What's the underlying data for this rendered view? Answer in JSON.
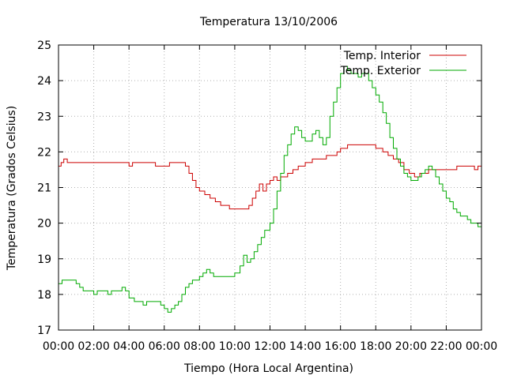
{
  "chart_data": {
    "type": "line",
    "title": "Temperatura 13/10/2006",
    "xlabel": "Tiempo (Hora Local Argentina)",
    "ylabel": "Temperatura (Grados Celsius)",
    "xlim": [
      0,
      24
    ],
    "ylim": [
      17,
      25
    ],
    "grid": true,
    "legend_position": "top-right",
    "x_ticks": [
      {
        "v": 0,
        "label": "00:00"
      },
      {
        "v": 2,
        "label": "02:00"
      },
      {
        "v": 4,
        "label": "04:00"
      },
      {
        "v": 6,
        "label": "06:00"
      },
      {
        "v": 8,
        "label": "08:00"
      },
      {
        "v": 10,
        "label": "10:00"
      },
      {
        "v": 12,
        "label": "12:00"
      },
      {
        "v": 14,
        "label": "14:00"
      },
      {
        "v": 16,
        "label": "16:00"
      },
      {
        "v": 18,
        "label": "18:00"
      },
      {
        "v": 20,
        "label": "20:00"
      },
      {
        "v": 22,
        "label": "22:00"
      },
      {
        "v": 24,
        "label": "00:00"
      }
    ],
    "y_ticks": [
      {
        "v": 17,
        "label": "17"
      },
      {
        "v": 18,
        "label": "18"
      },
      {
        "v": 19,
        "label": "19"
      },
      {
        "v": 20,
        "label": "20"
      },
      {
        "v": 21,
        "label": "21"
      },
      {
        "v": 22,
        "label": "22"
      },
      {
        "v": 23,
        "label": "23"
      },
      {
        "v": 24,
        "label": "24"
      },
      {
        "v": 25,
        "label": "25"
      }
    ],
    "series": [
      {
        "name": "Temp. Interior",
        "color": "#cc0000",
        "points": [
          [
            0,
            21.6
          ],
          [
            0.15,
            21.7
          ],
          [
            0.3,
            21.8
          ],
          [
            0.5,
            21.7
          ],
          [
            1.5,
            21.7
          ],
          [
            2.5,
            21.7
          ],
          [
            3.5,
            21.7
          ],
          [
            3.9,
            21.7
          ],
          [
            4.0,
            21.6
          ],
          [
            4.2,
            21.7
          ],
          [
            4.5,
            21.7
          ],
          [
            5.0,
            21.7
          ],
          [
            5.4,
            21.7
          ],
          [
            5.5,
            21.6
          ],
          [
            6.2,
            21.6
          ],
          [
            6.3,
            21.7
          ],
          [
            7.0,
            21.7
          ],
          [
            7.2,
            21.6
          ],
          [
            7.4,
            21.4
          ],
          [
            7.6,
            21.2
          ],
          [
            7.8,
            21.0
          ],
          [
            8.0,
            20.9
          ],
          [
            8.3,
            20.8
          ],
          [
            8.6,
            20.7
          ],
          [
            8.9,
            20.6
          ],
          [
            9.2,
            20.5
          ],
          [
            9.5,
            20.5
          ],
          [
            9.7,
            20.4
          ],
          [
            10.5,
            20.4
          ],
          [
            10.8,
            20.5
          ],
          [
            11.0,
            20.7
          ],
          [
            11.2,
            20.9
          ],
          [
            11.4,
            21.1
          ],
          [
            11.6,
            20.9
          ],
          [
            11.8,
            21.1
          ],
          [
            12.0,
            21.2
          ],
          [
            12.2,
            21.3
          ],
          [
            12.4,
            21.2
          ],
          [
            12.6,
            21.3
          ],
          [
            12.8,
            21.3
          ],
          [
            13.0,
            21.4
          ],
          [
            13.3,
            21.5
          ],
          [
            13.6,
            21.6
          ],
          [
            14.0,
            21.7
          ],
          [
            14.4,
            21.8
          ],
          [
            14.8,
            21.8
          ],
          [
            15.2,
            21.9
          ],
          [
            15.5,
            21.9
          ],
          [
            15.8,
            22.0
          ],
          [
            16.0,
            22.1
          ],
          [
            16.4,
            22.2
          ],
          [
            17.0,
            22.2
          ],
          [
            17.6,
            22.2
          ],
          [
            18.0,
            22.1
          ],
          [
            18.4,
            22.0
          ],
          [
            18.7,
            21.9
          ],
          [
            19.0,
            21.8
          ],
          [
            19.3,
            21.7
          ],
          [
            19.6,
            21.5
          ],
          [
            19.9,
            21.4
          ],
          [
            20.2,
            21.3
          ],
          [
            20.5,
            21.4
          ],
          [
            20.8,
            21.4
          ],
          [
            21.0,
            21.5
          ],
          [
            21.5,
            21.5
          ],
          [
            22.0,
            21.5
          ],
          [
            22.4,
            21.5
          ],
          [
            22.6,
            21.6
          ],
          [
            23.0,
            21.6
          ],
          [
            23.4,
            21.6
          ],
          [
            23.6,
            21.5
          ],
          [
            23.8,
            21.6
          ],
          [
            24.0,
            21.6
          ]
        ]
      },
      {
        "name": "Temp. Exterior",
        "color": "#00aa00",
        "points": [
          [
            0,
            18.3
          ],
          [
            0.2,
            18.4
          ],
          [
            0.5,
            18.4
          ],
          [
            0.8,
            18.4
          ],
          [
            1.0,
            18.3
          ],
          [
            1.2,
            18.2
          ],
          [
            1.4,
            18.1
          ],
          [
            1.8,
            18.1
          ],
          [
            2.0,
            18.0
          ],
          [
            2.2,
            18.1
          ],
          [
            2.6,
            18.1
          ],
          [
            2.8,
            18.0
          ],
          [
            3.0,
            18.1
          ],
          [
            3.4,
            18.1
          ],
          [
            3.6,
            18.2
          ],
          [
            3.8,
            18.1
          ],
          [
            4.0,
            17.9
          ],
          [
            4.3,
            17.8
          ],
          [
            4.6,
            17.8
          ],
          [
            4.8,
            17.7
          ],
          [
            5.0,
            17.8
          ],
          [
            5.5,
            17.8
          ],
          [
            5.8,
            17.7
          ],
          [
            6.0,
            17.6
          ],
          [
            6.2,
            17.5
          ],
          [
            6.4,
            17.6
          ],
          [
            6.6,
            17.7
          ],
          [
            6.8,
            17.8
          ],
          [
            7.0,
            18.0
          ],
          [
            7.2,
            18.2
          ],
          [
            7.4,
            18.3
          ],
          [
            7.6,
            18.4
          ],
          [
            7.8,
            18.4
          ],
          [
            8.0,
            18.5
          ],
          [
            8.2,
            18.6
          ],
          [
            8.4,
            18.7
          ],
          [
            8.6,
            18.6
          ],
          [
            8.8,
            18.5
          ],
          [
            9.2,
            18.5
          ],
          [
            9.6,
            18.5
          ],
          [
            10.0,
            18.6
          ],
          [
            10.3,
            18.8
          ],
          [
            10.5,
            19.1
          ],
          [
            10.7,
            18.9
          ],
          [
            10.9,
            19.0
          ],
          [
            11.1,
            19.2
          ],
          [
            11.3,
            19.4
          ],
          [
            11.5,
            19.6
          ],
          [
            11.7,
            19.8
          ],
          [
            12.0,
            20.0
          ],
          [
            12.2,
            20.4
          ],
          [
            12.4,
            20.9
          ],
          [
            12.6,
            21.4
          ],
          [
            12.8,
            21.9
          ],
          [
            13.0,
            22.2
          ],
          [
            13.2,
            22.5
          ],
          [
            13.4,
            22.7
          ],
          [
            13.6,
            22.6
          ],
          [
            13.8,
            22.4
          ],
          [
            14.0,
            22.3
          ],
          [
            14.2,
            22.3
          ],
          [
            14.4,
            22.5
          ],
          [
            14.6,
            22.6
          ],
          [
            14.8,
            22.4
          ],
          [
            15.0,
            22.2
          ],
          [
            15.2,
            22.4
          ],
          [
            15.4,
            23.0
          ],
          [
            15.6,
            23.4
          ],
          [
            15.8,
            23.8
          ],
          [
            16.0,
            24.2
          ],
          [
            16.2,
            24.4
          ],
          [
            16.4,
            24.3
          ],
          [
            16.6,
            24.2
          ],
          [
            16.8,
            24.2
          ],
          [
            17.0,
            24.1
          ],
          [
            17.2,
            24.2
          ],
          [
            17.4,
            24.2
          ],
          [
            17.6,
            24.0
          ],
          [
            17.8,
            23.8
          ],
          [
            18.0,
            23.6
          ],
          [
            18.2,
            23.4
          ],
          [
            18.4,
            23.1
          ],
          [
            18.6,
            22.8
          ],
          [
            18.8,
            22.4
          ],
          [
            19.0,
            22.1
          ],
          [
            19.2,
            21.8
          ],
          [
            19.4,
            21.6
          ],
          [
            19.6,
            21.4
          ],
          [
            19.8,
            21.3
          ],
          [
            20.0,
            21.2
          ],
          [
            20.2,
            21.2
          ],
          [
            20.4,
            21.3
          ],
          [
            20.6,
            21.4
          ],
          [
            20.8,
            21.5
          ],
          [
            21.0,
            21.6
          ],
          [
            21.2,
            21.5
          ],
          [
            21.4,
            21.3
          ],
          [
            21.6,
            21.1
          ],
          [
            21.8,
            20.9
          ],
          [
            22.0,
            20.7
          ],
          [
            22.2,
            20.6
          ],
          [
            22.4,
            20.4
          ],
          [
            22.6,
            20.3
          ],
          [
            22.8,
            20.2
          ],
          [
            23.0,
            20.2
          ],
          [
            23.2,
            20.1
          ],
          [
            23.4,
            20.0
          ],
          [
            23.6,
            20.0
          ],
          [
            23.8,
            19.9
          ],
          [
            24.0,
            19.8
          ]
        ]
      }
    ]
  }
}
